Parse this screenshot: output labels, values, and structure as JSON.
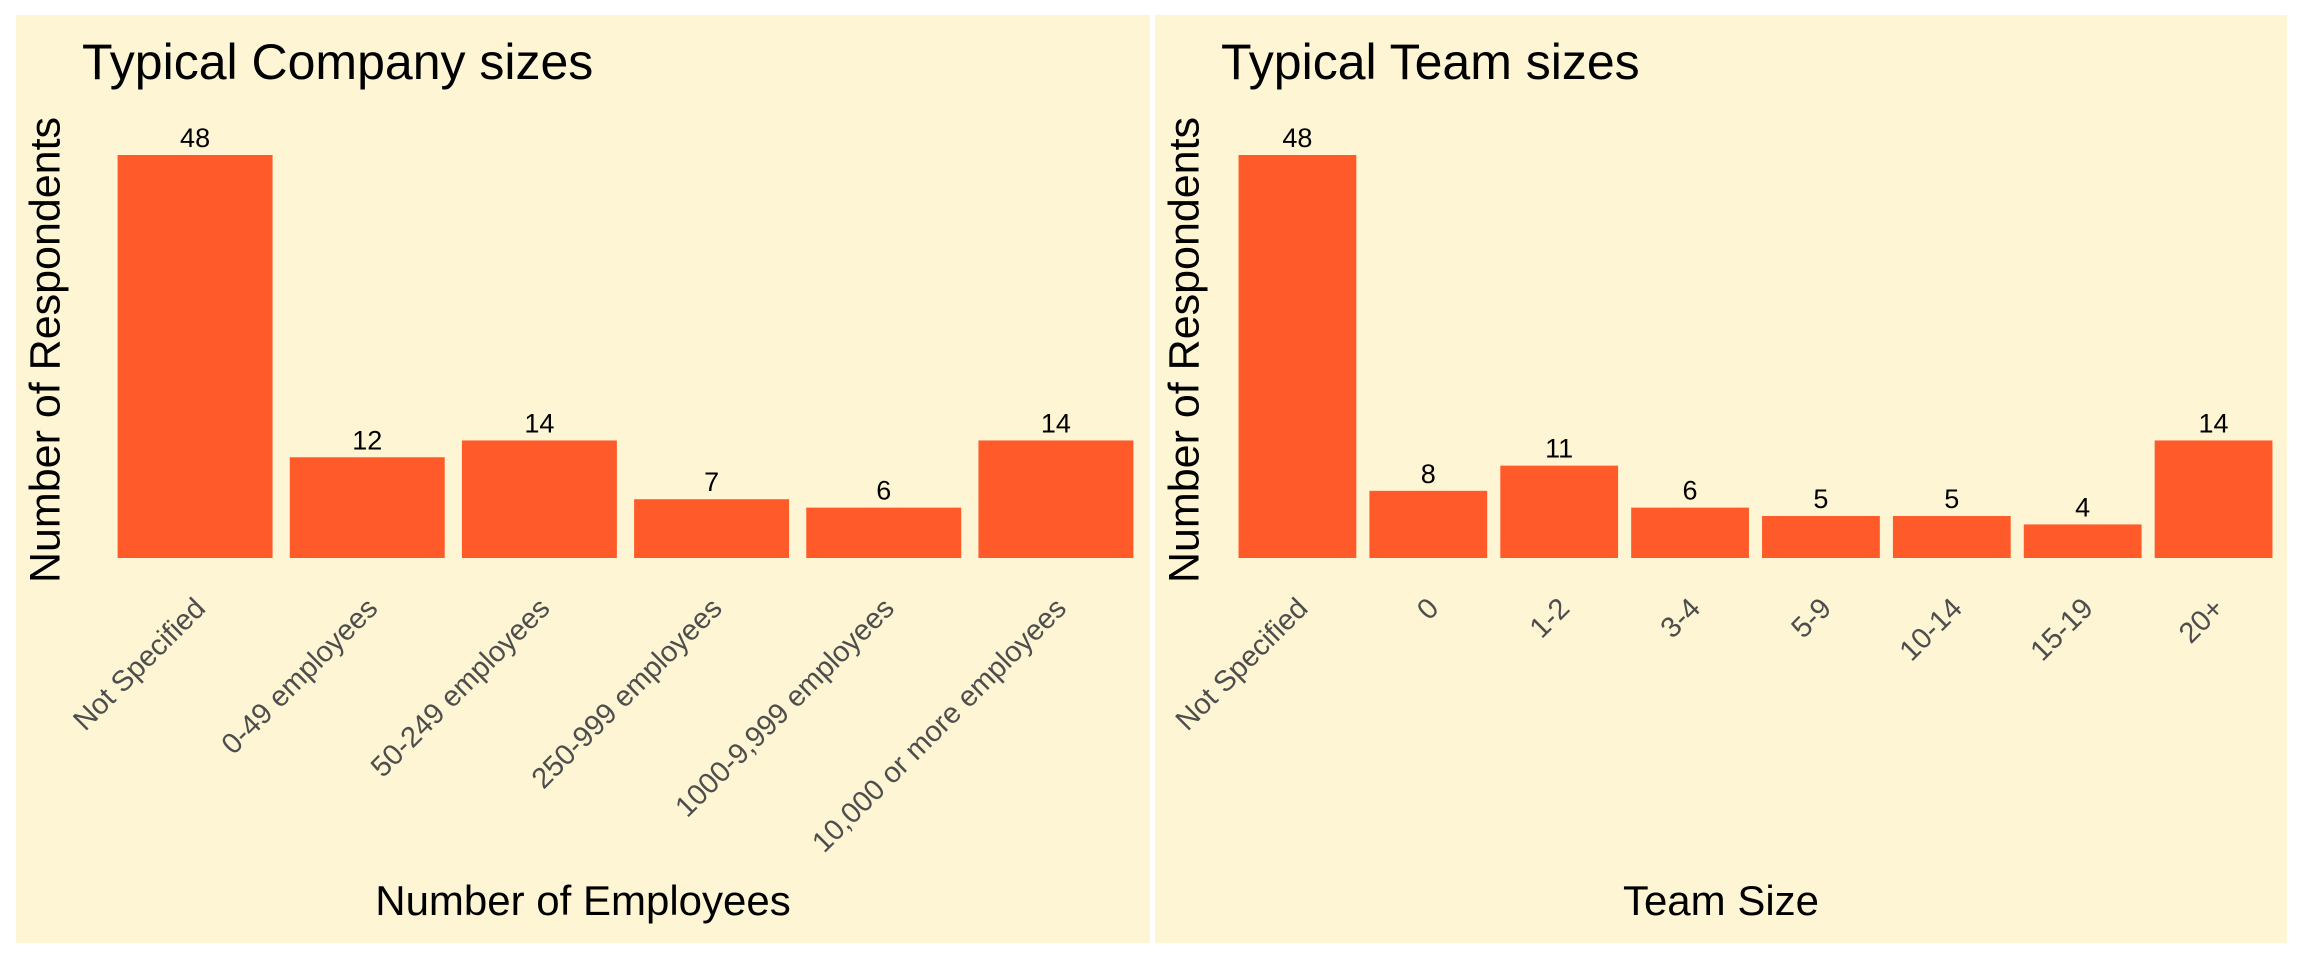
{
  "colors": {
    "panel_background": "#fdf5d3",
    "bar": "#fe5a2a",
    "text": "#000000",
    "tick_text": "#4d4d4d"
  },
  "chart_data": [
    {
      "type": "bar",
      "title": "Typical Company sizes",
      "xlabel": "Number of Employees",
      "ylabel": "Number of Respondents",
      "categories": [
        "Not Specified",
        "0-49 employees",
        "50-249 employees",
        "250-999 employees",
        "1000-9,999 employees",
        "10,000 or more employees"
      ],
      "values": [
        48,
        12,
        14,
        7,
        6,
        14
      ],
      "data_labels": [
        "48",
        "12",
        "14",
        "7",
        "6",
        "14"
      ],
      "ylim": [
        0,
        48
      ],
      "grid": false,
      "legend": "none"
    },
    {
      "type": "bar",
      "title": "Typical Team sizes",
      "xlabel": "Team Size",
      "ylabel": "Number of Respondents",
      "categories": [
        "Not Specified",
        "0",
        "1-2",
        "3-4",
        "5-9",
        "10-14",
        "15-19",
        "20+"
      ],
      "values": [
        48,
        8,
        11,
        6,
        5,
        5,
        4,
        14
      ],
      "data_labels": [
        "48",
        "8",
        "11",
        "6",
        "5",
        "5",
        "4",
        "14"
      ],
      "ylim": [
        0,
        48
      ],
      "grid": false,
      "legend": "none"
    }
  ]
}
